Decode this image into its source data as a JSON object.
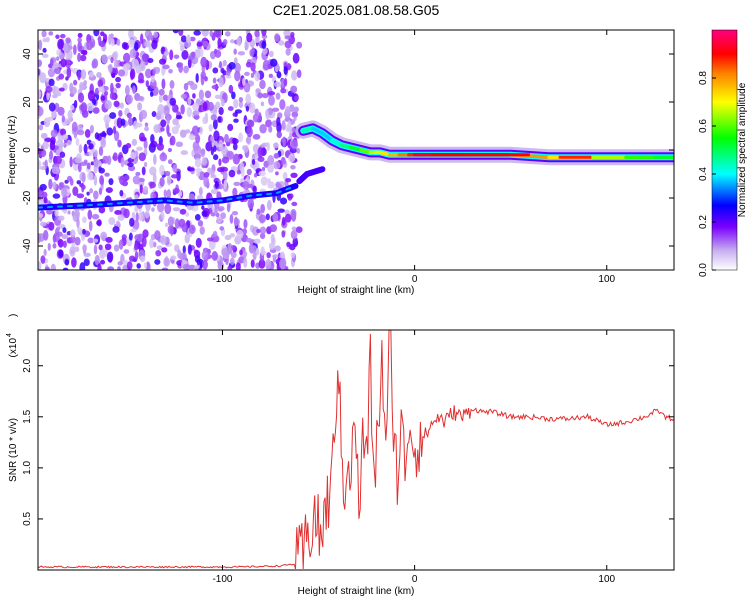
{
  "title": "C2E1.2025.081.08.58.G05",
  "chart_data": [
    {
      "type": "heatmap",
      "title": "",
      "xlabel": "Height of straight line (km)",
      "ylabel": "Frequency (Hz)",
      "xlim": [
        -196,
        135
      ],
      "ylim": [
        -50,
        50
      ],
      "x_ticks": [
        -100,
        0,
        100
      ],
      "x_tick_labels": [
        "-100",
        "0",
        "100"
      ],
      "y_ticks": [
        -40,
        -20,
        0,
        20,
        40
      ],
      "y_tick_labels": [
        "-40",
        "-20",
        "0",
        "20",
        "40"
      ],
      "colorbar": {
        "label": "Normalized spectral amplitude",
        "range": [
          0,
          1
        ],
        "ticks": [
          0.0,
          0.2,
          0.4,
          0.6,
          0.8
        ],
        "tick_labels": [
          "0.0",
          "0.2",
          "0.4",
          "0.6",
          "0.8"
        ],
        "colormap": "rainbow (white-violet-blue-cyan-green-yellow-red-magenta)"
      },
      "noise_region": {
        "x": [
          -196,
          -60
        ],
        "y": [
          -50,
          50
        ]
      },
      "ridge_lower": {
        "x": [
          -196,
          -170,
          -150,
          -130,
          -115,
          -100,
          -85,
          -72,
          -62
        ],
        "y": [
          -24,
          -23,
          -22,
          -21,
          -22,
          -21,
          -19,
          -18,
          -15
        ]
      },
      "ridge_main": {
        "x": [
          -58,
          -53,
          -48,
          -43,
          -38,
          -33,
          -28,
          -23,
          -18,
          -13,
          -8,
          -3,
          0,
          10,
          30,
          50,
          70,
          90,
          110,
          125,
          135
        ],
        "y": [
          8,
          9,
          7,
          4,
          2,
          1,
          0,
          -1,
          -1,
          -2,
          -2,
          -2,
          -2,
          -2,
          -2,
          -2,
          -3,
          -3,
          -3,
          -3,
          -3
        ],
        "amplitude": [
          0.5,
          0.4,
          0.35,
          0.4,
          0.45,
          0.5,
          0.55,
          0.65,
          0.7,
          0.75,
          0.8,
          0.85,
          0.9,
          0.95,
          0.9,
          0.85,
          0.75,
          0.7,
          0.6,
          0.55,
          0.5
        ]
      },
      "ridge_dip": {
        "x": [
          -60,
          -56,
          -52,
          -48
        ],
        "y": [
          -13,
          -10,
          -9,
          -8
        ]
      }
    },
    {
      "type": "line",
      "title": "",
      "xlabel": "Height of straight line (km)",
      "ylabel": "SNR (10 * v/v)",
      "y_scale_note": "(x10",
      "y_scale_exp": "4",
      "xlim": [
        -196,
        135
      ],
      "ylim": [
        0,
        2.35
      ],
      "x_ticks": [
        -100,
        0,
        100
      ],
      "x_tick_labels": [
        "-100",
        "0",
        "100"
      ],
      "y_ticks": [
        0.5,
        1.0,
        1.5,
        2.0
      ],
      "y_tick_labels": [
        "0.5",
        "1.0",
        "1.5",
        "2.0"
      ],
      "color": "#e03030",
      "series": [
        {
          "x": [
            -196,
            -160,
            -120,
            -90,
            -70,
            -62,
            -58,
            -55,
            -52,
            -49,
            -46,
            -43,
            -40,
            -37,
            -35,
            -33,
            -31,
            -29,
            -27,
            -25,
            -23,
            -21,
            -19,
            -17,
            -15,
            -13,
            -11,
            -9,
            -7,
            -5,
            -3,
            -1,
            1,
            3,
            5,
            8,
            12,
            16,
            20,
            25,
            30,
            35,
            40,
            50,
            60,
            70,
            80,
            90,
            100,
            110,
            120,
            125,
            128,
            130,
            135
          ],
          "y": [
            0.03,
            0.03,
            0.03,
            0.03,
            0.04,
            0.06,
            0.15,
            0.35,
            0.55,
            0.3,
            0.6,
            0.85,
            2.05,
            0.7,
            1.2,
            0.9,
            1.6,
            0.5,
            1.3,
            1.05,
            2.0,
            0.8,
            1.4,
            2.15,
            1.0,
            2.35,
            1.5,
            0.9,
            1.4,
            1.0,
            1.5,
            1.25,
            1.2,
            1.35,
            1.3,
            1.4,
            1.5,
            1.45,
            1.55,
            1.5,
            1.58,
            1.55,
            1.55,
            1.5,
            1.5,
            1.48,
            1.48,
            1.5,
            1.42,
            1.45,
            1.5,
            1.55,
            1.55,
            1.5,
            1.48
          ]
        }
      ]
    }
  ]
}
